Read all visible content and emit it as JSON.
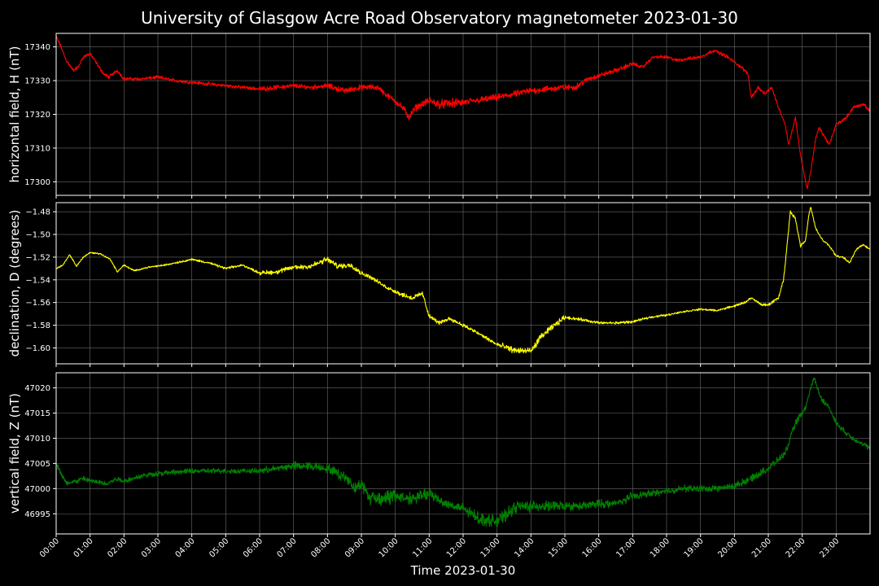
{
  "chart_data": {
    "type": "line",
    "title": "University of Glasgow Acre Road Observatory magnetometer 2023-01-30",
    "xlabel": "Time 2023-01-30",
    "x_unit": "hours",
    "xlim": [
      0,
      24
    ],
    "x_ticks": [
      0,
      1,
      2,
      3,
      4,
      5,
      6,
      7,
      8,
      9,
      10,
      11,
      12,
      13,
      14,
      15,
      16,
      17,
      18,
      19,
      20,
      21,
      22,
      23
    ],
    "x_tick_labels": [
      "00:00",
      "01:00",
      "02:00",
      "03:00",
      "04:00",
      "05:00",
      "06:00",
      "07:00",
      "08:00",
      "09:00",
      "10:00",
      "11:00",
      "12:00",
      "13:00",
      "14:00",
      "15:00",
      "16:00",
      "17:00",
      "18:00",
      "19:00",
      "20:00",
      "21:00",
      "22:00",
      "23:00"
    ],
    "grid": true,
    "panels": [
      {
        "ylabel": "horizontal field, H (nT)",
        "color": "#ff0000",
        "ylim": [
          17296,
          17344
        ],
        "yticks": [
          17300,
          17310,
          17320,
          17330,
          17340
        ],
        "ytick_labels": [
          "17300",
          "17310",
          "17320",
          "17330",
          "17340"
        ],
        "noise": [
          0.3,
          0.3,
          0.3,
          0.3,
          0.3,
          0.3,
          0.4,
          0.4,
          0.5,
          0.5,
          0.6,
          0.8,
          0.6,
          0.6,
          0.6,
          0.5,
          0.4,
          0.3,
          0.3,
          0.3,
          0.3,
          0.3,
          0.3,
          0.3
        ],
        "points": [
          [
            0,
            17343
          ],
          [
            0.1,
            17341
          ],
          [
            0.3,
            17336
          ],
          [
            0.5,
            17333
          ],
          [
            0.65,
            17334
          ],
          [
            0.8,
            17337
          ],
          [
            1.0,
            17338
          ],
          [
            1.2,
            17335
          ],
          [
            1.4,
            17332
          ],
          [
            1.55,
            17331
          ],
          [
            1.8,
            17333
          ],
          [
            2.0,
            17330.5
          ],
          [
            2.5,
            17330.5
          ],
          [
            3.0,
            17331
          ],
          [
            3.5,
            17330
          ],
          [
            4.0,
            17329.5
          ],
          [
            5.0,
            17328.5
          ],
          [
            6.0,
            17327.5
          ],
          [
            6.5,
            17328
          ],
          [
            7.0,
            17328.5
          ],
          [
            7.5,
            17328
          ],
          [
            8.0,
            17328.5
          ],
          [
            8.5,
            17327
          ],
          [
            9.0,
            17328
          ],
          [
            9.5,
            17328
          ],
          [
            9.7,
            17326
          ],
          [
            10.0,
            17324
          ],
          [
            10.3,
            17321
          ],
          [
            10.4,
            17319
          ],
          [
            10.6,
            17322
          ],
          [
            11.0,
            17324
          ],
          [
            11.3,
            17323
          ],
          [
            12.0,
            17323.5
          ],
          [
            13.0,
            17325
          ],
          [
            14.0,
            17327
          ],
          [
            15.0,
            17328
          ],
          [
            15.3,
            17328
          ],
          [
            15.7,
            17330.5
          ],
          [
            16.5,
            17333
          ],
          [
            17.0,
            17335
          ],
          [
            17.3,
            17334
          ],
          [
            17.6,
            17337
          ],
          [
            18.0,
            17337
          ],
          [
            18.3,
            17336
          ],
          [
            19.0,
            17337
          ],
          [
            19.4,
            17339
          ],
          [
            19.8,
            17337
          ],
          [
            20.2,
            17334
          ],
          [
            20.4,
            17332
          ],
          [
            20.5,
            17325
          ],
          [
            20.7,
            17328
          ],
          [
            20.9,
            17326
          ],
          [
            21.1,
            17328
          ],
          [
            21.3,
            17322
          ],
          [
            21.5,
            17317
          ],
          [
            21.6,
            17311
          ],
          [
            21.8,
            17319
          ],
          [
            21.95,
            17308
          ],
          [
            22.1,
            17300
          ],
          [
            22.15,
            17298
          ],
          [
            22.25,
            17303
          ],
          [
            22.4,
            17313
          ],
          [
            22.5,
            17316
          ],
          [
            22.8,
            17311
          ],
          [
            23.0,
            17317
          ],
          [
            23.3,
            17319
          ],
          [
            23.5,
            17322
          ],
          [
            23.8,
            17323
          ],
          [
            24.0,
            17321
          ]
        ]
      },
      {
        "ylabel": "declination, D (degrees)",
        "color": "#ffff00",
        "ylim": [
          -1.614,
          -1.472
        ],
        "yticks": [
          -1.6,
          -1.58,
          -1.56,
          -1.54,
          -1.52,
          -1.5,
          -1.48
        ],
        "ytick_labels": [
          "−1.60",
          "−1.58",
          "−1.56",
          "−1.54",
          "−1.52",
          "−1.50",
          "−1.48"
        ],
        "noise": [
          0.0004,
          0.0004,
          0.0004,
          0.0005,
          0.0006,
          0.0006,
          0.0012,
          0.0015,
          0.0014,
          0.001,
          0.0012,
          0.001,
          0.001,
          0.0016,
          0.0016,
          0.0008,
          0.0007,
          0.0006,
          0.0005,
          0.0005,
          0.0006,
          0.0008,
          0.0006,
          0.0005
        ],
        "points": [
          [
            0,
            -1.53
          ],
          [
            0.2,
            -1.527
          ],
          [
            0.4,
            -1.518
          ],
          [
            0.6,
            -1.528
          ],
          [
            0.8,
            -1.52
          ],
          [
            1.0,
            -1.516
          ],
          [
            1.3,
            -1.517
          ],
          [
            1.6,
            -1.522
          ],
          [
            1.8,
            -1.533
          ],
          [
            2.0,
            -1.527
          ],
          [
            2.3,
            -1.532
          ],
          [
            2.7,
            -1.529
          ],
          [
            3.2,
            -1.527
          ],
          [
            4.0,
            -1.522
          ],
          [
            4.5,
            -1.525
          ],
          [
            5.0,
            -1.53
          ],
          [
            5.5,
            -1.527
          ],
          [
            6.0,
            -1.534
          ],
          [
            6.5,
            -1.533
          ],
          [
            7.0,
            -1.529
          ],
          [
            7.5,
            -1.528
          ],
          [
            8.0,
            -1.522
          ],
          [
            8.3,
            -1.528
          ],
          [
            8.7,
            -1.527
          ],
          [
            9.0,
            -1.534
          ],
          [
            9.3,
            -1.538
          ],
          [
            9.7,
            -1.546
          ],
          [
            10.2,
            -1.553
          ],
          [
            10.5,
            -1.556
          ],
          [
            10.8,
            -1.552
          ],
          [
            11.0,
            -1.572
          ],
          [
            11.3,
            -1.578
          ],
          [
            11.6,
            -1.574
          ],
          [
            12.0,
            -1.58
          ],
          [
            12.5,
            -1.588
          ],
          [
            13.0,
            -1.597
          ],
          [
            13.5,
            -1.602
          ],
          [
            14.0,
            -1.603
          ],
          [
            14.3,
            -1.59
          ],
          [
            14.7,
            -1.58
          ],
          [
            15.0,
            -1.573
          ],
          [
            15.5,
            -1.575
          ],
          [
            16.0,
            -1.578
          ],
          [
            16.5,
            -1.578
          ],
          [
            17.0,
            -1.577
          ],
          [
            17.5,
            -1.573
          ],
          [
            18.0,
            -1.571
          ],
          [
            18.5,
            -1.568
          ],
          [
            19.0,
            -1.566
          ],
          [
            19.5,
            -1.567
          ],
          [
            20.0,
            -1.563
          ],
          [
            20.3,
            -1.56
          ],
          [
            20.5,
            -1.556
          ],
          [
            20.8,
            -1.562
          ],
          [
            21.0,
            -1.562
          ],
          [
            21.3,
            -1.556
          ],
          [
            21.45,
            -1.54
          ],
          [
            21.55,
            -1.51
          ],
          [
            21.65,
            -1.48
          ],
          [
            21.8,
            -1.486
          ],
          [
            21.95,
            -1.51
          ],
          [
            22.1,
            -1.505
          ],
          [
            22.2,
            -1.482
          ],
          [
            22.25,
            -1.476
          ],
          [
            22.4,
            -1.495
          ],
          [
            22.6,
            -1.505
          ],
          [
            22.8,
            -1.51
          ],
          [
            23.0,
            -1.519
          ],
          [
            23.2,
            -1.52
          ],
          [
            23.4,
            -1.525
          ],
          [
            23.6,
            -1.513
          ],
          [
            23.8,
            -1.509
          ],
          [
            24.0,
            -1.513
          ]
        ]
      },
      {
        "ylabel": "vertical field, Z (nT)",
        "color": "#008000",
        "ylim": [
          46991,
          47023
        ],
        "yticks": [
          46995,
          47000,
          47005,
          47010,
          47015,
          47020
        ],
        "ytick_labels": [
          "46995",
          "47000",
          "47005",
          "47010",
          "47015",
          "47020"
        ],
        "noise": [
          0.3,
          0.3,
          0.3,
          0.3,
          0.3,
          0.3,
          0.4,
          0.5,
          0.6,
          0.9,
          0.7,
          0.6,
          0.7,
          0.7,
          0.6,
          0.5,
          0.5,
          0.4,
          0.4,
          0.4,
          0.4,
          0.4,
          0.3,
          0.3
        ],
        "points": [
          [
            0,
            47005
          ],
          [
            0.15,
            47003
          ],
          [
            0.3,
            47001
          ],
          [
            0.6,
            47001.5
          ],
          [
            0.8,
            47002
          ],
          [
            1.0,
            47001.5
          ],
          [
            1.5,
            47001
          ],
          [
            1.8,
            47002
          ],
          [
            2.0,
            47001.5
          ],
          [
            2.5,
            47002.5
          ],
          [
            3.0,
            47003
          ],
          [
            4.0,
            47003.5
          ],
          [
            5.0,
            47003.5
          ],
          [
            6.0,
            47003.5
          ],
          [
            6.5,
            47004
          ],
          [
            7.0,
            47004.5
          ],
          [
            7.5,
            47004.5
          ],
          [
            8.0,
            47004
          ],
          [
            8.3,
            47003
          ],
          [
            8.6,
            47002
          ],
          [
            8.8,
            47000
          ],
          [
            9.0,
            47001
          ],
          [
            9.2,
            46998.5
          ],
          [
            9.5,
            46998
          ],
          [
            10.0,
            46998.5
          ],
          [
            10.5,
            46998
          ],
          [
            11.0,
            46999
          ],
          [
            11.5,
            46997
          ],
          [
            12.0,
            46996
          ],
          [
            12.5,
            46994
          ],
          [
            13.0,
            46993.5
          ],
          [
            13.3,
            46995
          ],
          [
            13.6,
            46996.5
          ],
          [
            14.0,
            46996.5
          ],
          [
            14.5,
            46996.5
          ],
          [
            15.0,
            46996.5
          ],
          [
            15.5,
            46996.5
          ],
          [
            16.0,
            46997
          ],
          [
            16.5,
            46997
          ],
          [
            17.0,
            46998.5
          ],
          [
            17.5,
            46999
          ],
          [
            18.0,
            46999.5
          ],
          [
            18.5,
            47000
          ],
          [
            19.0,
            47000
          ],
          [
            19.5,
            47000
          ],
          [
            20.0,
            47000.5
          ],
          [
            20.5,
            47002
          ],
          [
            21.0,
            47004
          ],
          [
            21.5,
            47007
          ],
          [
            21.8,
            47013
          ],
          [
            22.1,
            47016
          ],
          [
            22.25,
            47020
          ],
          [
            22.35,
            47022
          ],
          [
            22.55,
            47018
          ],
          [
            22.8,
            47016
          ],
          [
            23.0,
            47013
          ],
          [
            23.3,
            47011
          ],
          [
            23.6,
            47009.5
          ],
          [
            24.0,
            47008
          ]
        ]
      }
    ]
  }
}
